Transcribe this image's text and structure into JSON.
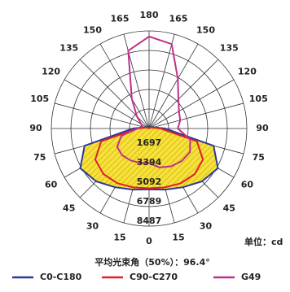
{
  "chart_data": {
    "type": "polar",
    "title": "平均光束角（50%）：96.4°",
    "unit_label": "单位：cd",
    "x": [
      -180,
      -165,
      -150,
      -135,
      -120,
      -105,
      -90,
      -75,
      -60,
      -45,
      -30,
      -15,
      0,
      15,
      30,
      45,
      60,
      75,
      90,
      105,
      120,
      135,
      150,
      165,
      180
    ],
    "series": [
      {
        "name": "C0-C180",
        "color": "#2b3a9a",
        "fill": "#f5e23c",
        "values": [
          20,
          30,
          50,
          100,
          200,
          400,
          1400,
          5800,
          6900,
          6500,
          5900,
          5500,
          5300,
          5500,
          5900,
          6500,
          6900,
          5800,
          1400,
          400,
          200,
          100,
          50,
          30,
          20
        ]
      },
      {
        "name": "C90-C270",
        "color": "#e0202a",
        "values": [
          20,
          20,
          40,
          80,
          150,
          300,
          1000,
          4300,
          5400,
          5600,
          5500,
          5300,
          5200,
          5300,
          5500,
          5600,
          5400,
          4300,
          1000,
          300,
          150,
          80,
          40,
          20,
          20
        ]
      },
      {
        "name": "G49",
        "color": "#c0308a",
        "values": [
          8000,
          7000,
          3000,
          1500,
          800,
          600,
          1000,
          2500,
          3200,
          3300,
          3200,
          3100,
          3000,
          3500,
          3800,
          4000,
          4100,
          3700,
          2500,
          2800,
          3000,
          3600,
          5000,
          7600,
          8000
        ]
      }
    ],
    "ylim": [
      0,
      8487
    ],
    "yticks": [
      1697,
      3394,
      5092,
      6789,
      8487
    ],
    "xticks": [
      {
        "value": -165,
        "label": "165"
      },
      {
        "value": -150,
        "label": "150"
      },
      {
        "value": -135,
        "label": "135"
      },
      {
        "value": -120,
        "label": "120"
      },
      {
        "value": -105,
        "label": "105"
      },
      {
        "value": -90,
        "label": "90"
      },
      {
        "value": -75,
        "label": "75"
      },
      {
        "value": -60,
        "label": "60"
      },
      {
        "value": -45,
        "label": "45"
      },
      {
        "value": -30,
        "label": "30"
      },
      {
        "value": -15,
        "label": "15"
      },
      0,
      15,
      30,
      45,
      60,
      75,
      90,
      105,
      120,
      135,
      150,
      165,
      180
    ],
    "grid": true
  }
}
